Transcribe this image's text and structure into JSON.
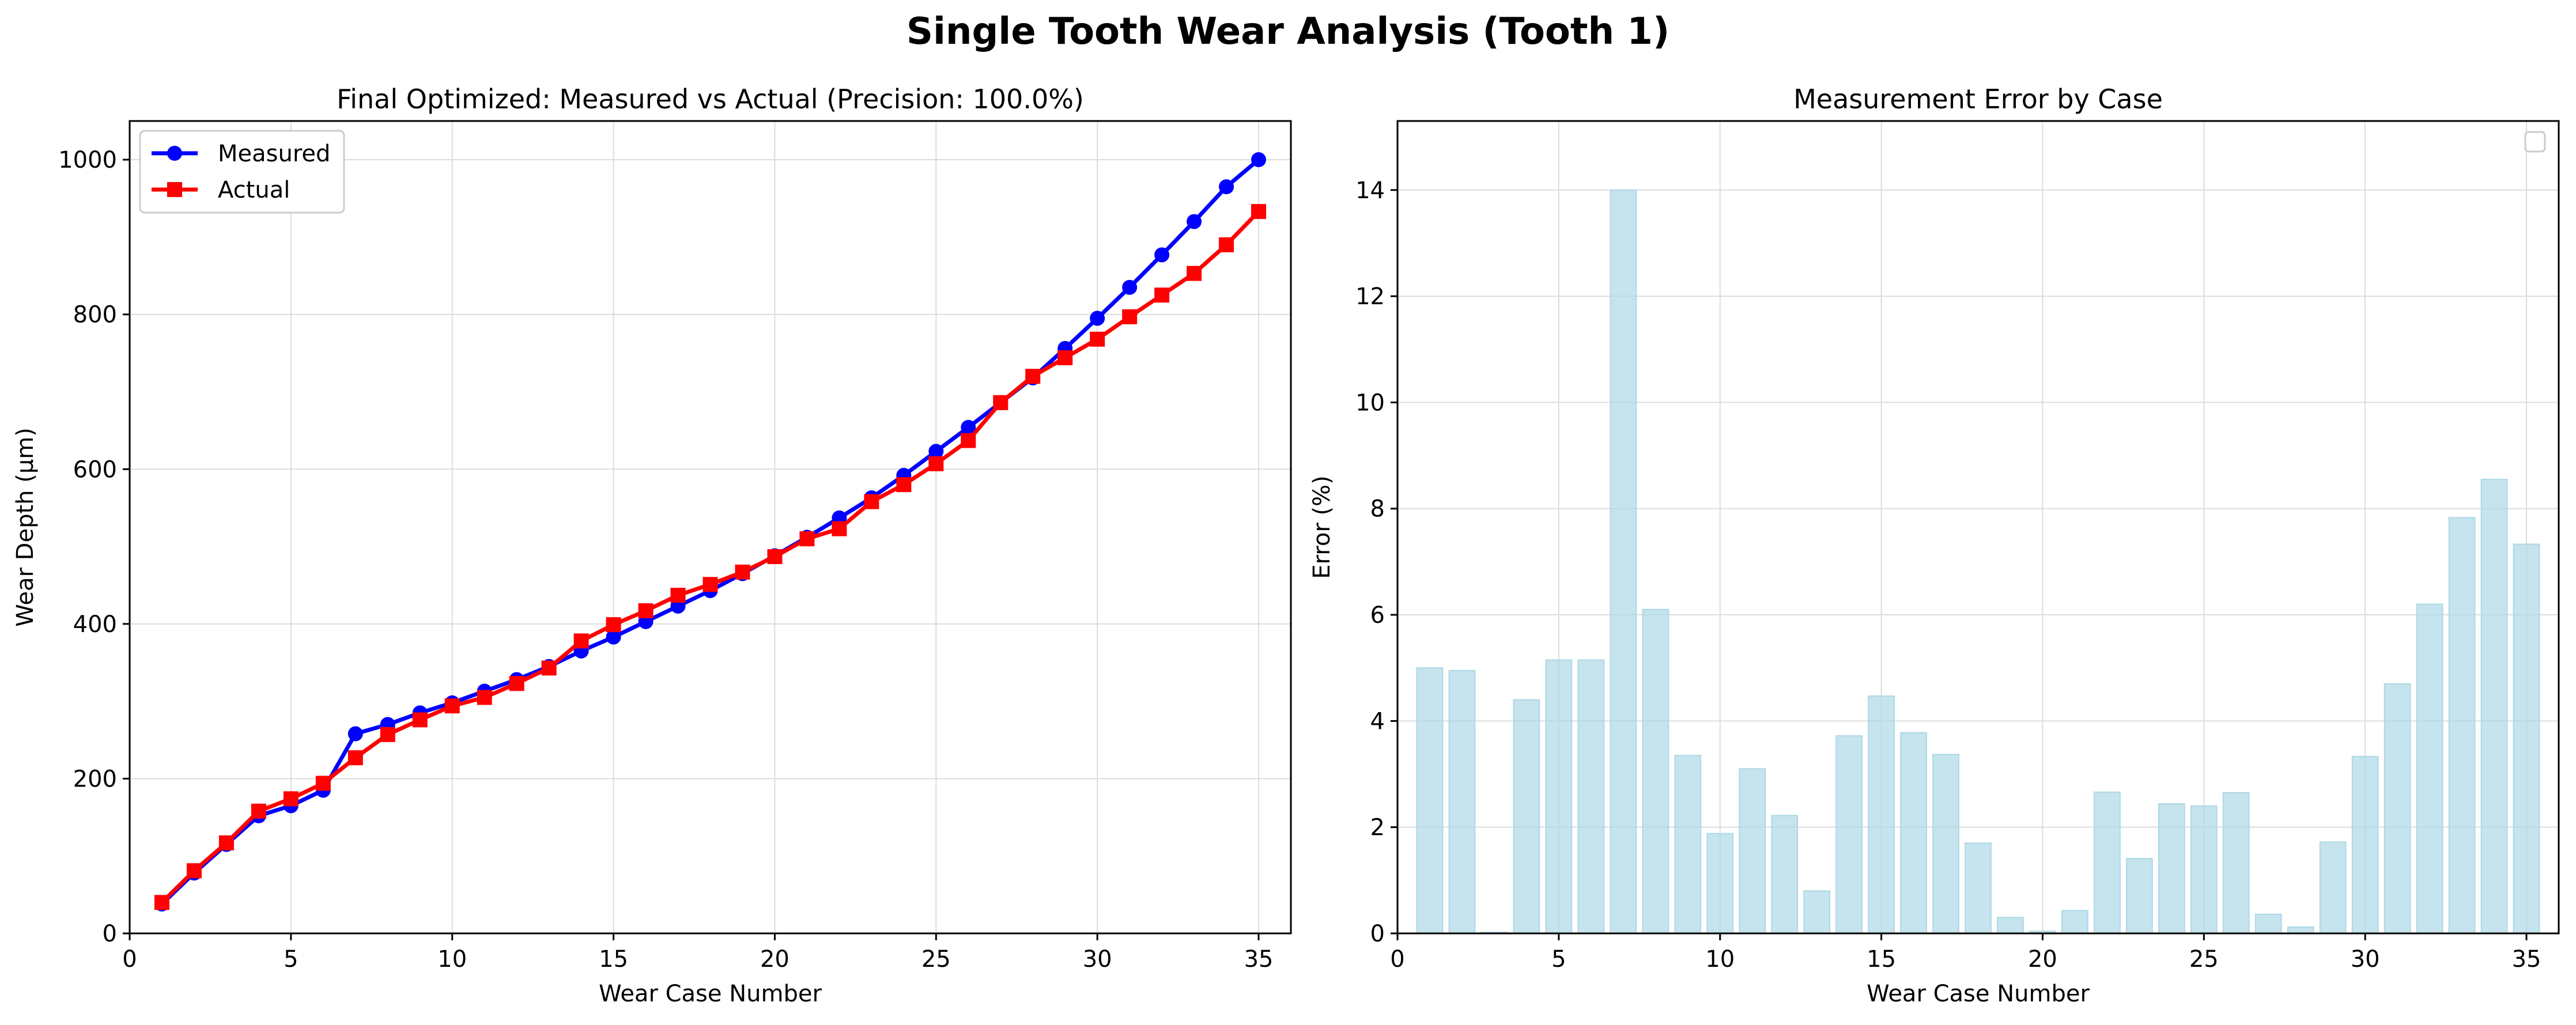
{
  "figure": {
    "suptitle": "Single Tooth Wear Analysis (Tooth 1)",
    "colors": {
      "measured": "#0000ff",
      "actual": "#ff0000",
      "bars": "#add8e6",
      "grid": "#dcdcdc"
    }
  },
  "chart_data": [
    {
      "type": "line",
      "title": "Final Optimized: Measured vs Actual (Precision: 100.0%)",
      "xlabel": "Wear Case Number",
      "ylabel": "Wear Depth (μm)",
      "xlim": [
        0,
        36
      ],
      "ylim": [
        0,
        1050
      ],
      "xticks": [
        0,
        5,
        10,
        15,
        20,
        25,
        30,
        35
      ],
      "yticks": [
        0,
        200,
        400,
        600,
        800,
        1000
      ],
      "grid": true,
      "legend": "top-left",
      "x": [
        1,
        2,
        3,
        4,
        5,
        6,
        7,
        8,
        9,
        10,
        11,
        12,
        13,
        14,
        15,
        16,
        17,
        18,
        19,
        20,
        21,
        22,
        23,
        24,
        25,
        26,
        27,
        28,
        29,
        30,
        31,
        32,
        33,
        34,
        35
      ],
      "series": [
        {
          "name": "Measured",
          "marker": "circle",
          "values": [
            38,
            78,
            115,
            152,
            165,
            185,
            258,
            270,
            285,
            298,
            313,
            328,
            345,
            365,
            383,
            403,
            423,
            443,
            465,
            488,
            512,
            537,
            563,
            592,
            623,
            654,
            686,
            718,
            756,
            795,
            835,
            877,
            920,
            965,
            1000
          ]
        },
        {
          "name": "Actual",
          "marker": "square",
          "values": [
            40,
            81,
            117,
            158,
            174,
            194,
            227,
            257,
            276,
            294,
            305,
            323,
            343,
            378,
            399,
            417,
            437,
            451,
            467,
            487,
            510,
            523,
            558,
            580,
            607,
            637,
            686,
            720,
            744,
            768,
            797,
            825,
            853,
            890,
            933
          ]
        }
      ]
    },
    {
      "type": "bar",
      "title": "Measurement Error by Case",
      "xlabel": "Wear Case Number",
      "ylabel": "Error (%)",
      "xlim": [
        0,
        36
      ],
      "ylim": [
        0,
        15.3
      ],
      "xticks": [
        0,
        5,
        10,
        15,
        20,
        25,
        30,
        35
      ],
      "yticks": [
        0,
        2,
        4,
        6,
        8,
        10,
        12,
        14
      ],
      "grid": true,
      "legend": "top-right (empty)",
      "categories": [
        1,
        2,
        3,
        4,
        5,
        6,
        7,
        8,
        9,
        10,
        11,
        12,
        13,
        14,
        15,
        16,
        17,
        18,
        19,
        20,
        21,
        22,
        23,
        24,
        25,
        26,
        27,
        28,
        29,
        30,
        31,
        32,
        33,
        34,
        35
      ],
      "values": [
        5.0,
        4.95,
        0.02,
        4.4,
        5.15,
        5.15,
        14.0,
        6.1,
        3.35,
        1.88,
        3.1,
        2.22,
        0.8,
        3.72,
        4.47,
        3.78,
        3.37,
        1.7,
        0.3,
        0.04,
        0.43,
        2.66,
        1.41,
        2.44,
        2.4,
        2.65,
        0.36,
        0.12,
        1.72,
        3.33,
        4.7,
        6.2,
        7.83,
        8.55,
        7.33
      ]
    }
  ]
}
